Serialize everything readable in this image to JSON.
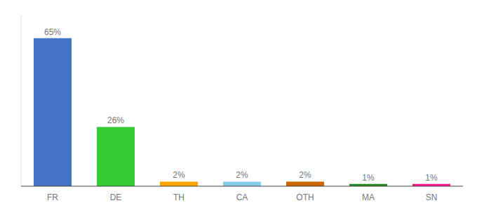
{
  "chart_data": {
    "type": "bar",
    "categories": [
      "FR",
      "DE",
      "TH",
      "CA",
      "OTH",
      "MA",
      "SN"
    ],
    "values": [
      65,
      26,
      2,
      2,
      2,
      1,
      1
    ],
    "value_labels": [
      "65%",
      "26%",
      "2%",
      "2%",
      "2%",
      "1%",
      "1%"
    ],
    "data_labels": true,
    "colors": [
      "#4472C4",
      "#33CC33",
      "#FFA500",
      "#87CEEB",
      "#CC6600",
      "#228B22",
      "#FF1493"
    ],
    "ylim": [
      0,
      75
    ],
    "tick_labels": "x"
  }
}
